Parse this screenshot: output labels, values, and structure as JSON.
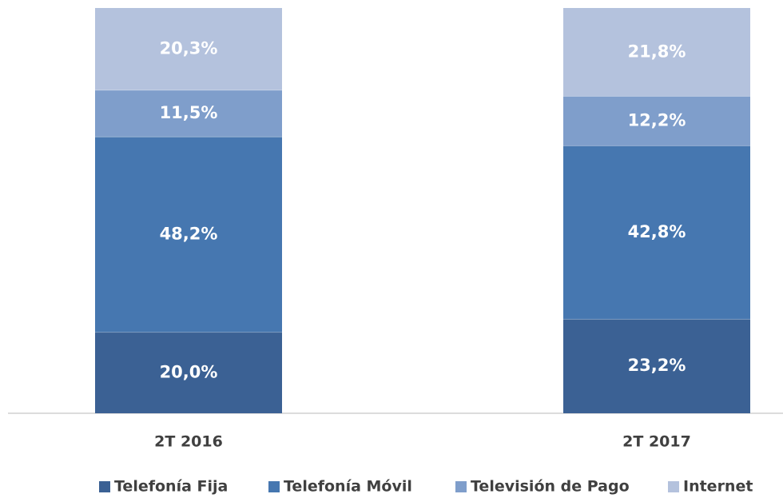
{
  "chart_data": {
    "type": "stacked_bar",
    "categories": [
      "2T 2016",
      "2T 2017"
    ],
    "ylim": [
      0,
      100
    ],
    "series": [
      {
        "name": "Telefonía Fija",
        "color": "#3b6194",
        "values": [
          20.0,
          23.2
        ],
        "value_labels": [
          "20,0%",
          "23,2%"
        ]
      },
      {
        "name": "Telefonía Móvil",
        "color": "#4677b0",
        "values": [
          48.2,
          42.8
        ],
        "value_labels": [
          "48,2%",
          "42,8%"
        ]
      },
      {
        "name": "Televisión de Pago",
        "color": "#7f9ecb",
        "values": [
          11.5,
          12.2
        ],
        "value_labels": [
          "11,5%",
          "12,2%"
        ]
      },
      {
        "name": "Internet",
        "color": "#b4c2dd",
        "values": [
          20.3,
          21.8
        ],
        "value_labels": [
          "20,3%",
          "21,8%"
        ]
      }
    ],
    "legend": "bottom"
  }
}
